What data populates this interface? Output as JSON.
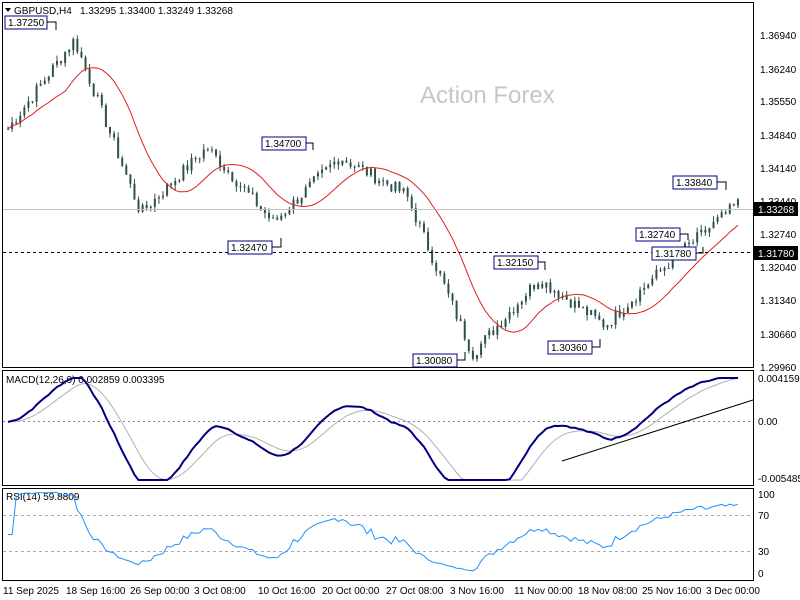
{
  "header": {
    "symbol": "GBPUSD,H4",
    "ohlc": "1.33295 1.33400 1.33249 1.33268",
    "watermark": "Action Forex"
  },
  "price_axis": {
    "ticks": [
      "1.36940",
      "1.36240",
      "1.35550",
      "1.34840",
      "1.34140",
      "1.33440",
      "1.32740",
      "1.32040",
      "1.31340",
      "1.30660",
      "1.29960"
    ],
    "current": "1.33268",
    "hline": "1.31780"
  },
  "macd": {
    "label": "MACD(12,26,9) 0.002859 0.003395",
    "ticks": [
      "0.004159",
      "0.00",
      "-0.005485"
    ]
  },
  "rsi": {
    "label": "RSI(14) 59.8809",
    "ticks": [
      "100",
      "70",
      "30",
      "0"
    ]
  },
  "time_axis": {
    "ticks": [
      "11 Sep 2025",
      "18 Sep 16:00",
      "26 Sep 00:00",
      "3 Oct 08:00",
      "10 Oct 16:00",
      "20 Oct 00:00",
      "27 Oct 08:00",
      "3 Nov 16:00",
      "11 Nov 00:00",
      "18 Nov 08:00",
      "25 Nov 16:00",
      "3 Dec 00:00"
    ]
  },
  "colors": {
    "candle": "#2f4f4f",
    "ma": "#e02020",
    "macd": "#000080",
    "signal": "#b0b0b0",
    "rsi": "#1e90ff",
    "trend": "#000000",
    "label_box": "#000080"
  },
  "chart_data": {
    "type": "line",
    "series": [
      {
        "name": "GBPUSD,H4",
        "x": [
          "11 Sep 2025",
          "18 Sep 16:00",
          "26 Sep 00:00",
          "3 Oct 08:00",
          "10 Oct 16:00",
          "20 Oct 00:00",
          "27 Oct 08:00",
          "3 Nov 16:00",
          "11 Nov 00:00",
          "18 Nov 08:00",
          "25 Nov 16:00",
          "3 Dec 00:00"
        ],
        "y": [
          1.35,
          1.369,
          1.332,
          1.346,
          1.33,
          1.344,
          1.336,
          1.302,
          1.318,
          1.308,
          1.322,
          1.334
        ]
      }
    ],
    "price_labels": [
      "1.37250",
      "1.34700",
      "1.32470",
      "1.33840",
      "1.32740",
      "1.32150",
      "1.31780",
      "1.30080",
      "1.30360"
    ],
    "ylim": [
      1.2996,
      1.3764
    ],
    "macd_ylim": [
      -0.005485,
      0.004159
    ],
    "rsi_ylim": [
      0,
      100
    ]
  }
}
